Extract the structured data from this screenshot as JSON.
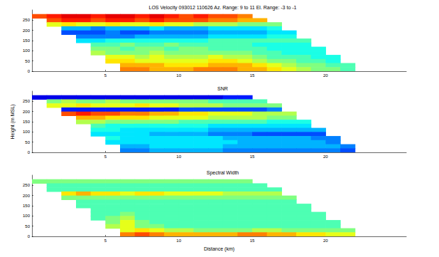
{
  "chart_data": [
    {
      "type": "heatmap",
      "title": "LOS Velocity 093012 110626 Az. Range: 9 to 11 El. Range: -3 to -1",
      "xlim": [
        0,
        25.5
      ],
      "xticks": [
        5,
        10,
        15,
        20
      ],
      "ylim": [
        0,
        300
      ],
      "yticks": [
        0,
        50,
        100,
        150,
        200,
        250
      ],
      "grid": false,
      "color_range": [
        0,
        10
      ],
      "x": [
        0.5,
        1.5,
        2.5,
        3.5,
        4.5,
        5.5,
        6.5,
        7.5,
        8.5,
        9.5,
        10.5,
        11.5,
        12.5,
        13.5,
        14.5,
        15.5,
        16.5,
        17.5,
        18.5,
        19.5,
        20.5,
        21.5
      ],
      "y": [
        270,
        250,
        230,
        210,
        190,
        170,
        150,
        130,
        110,
        90,
        70,
        50,
        30,
        10
      ],
      "cells": [
        [
          8,
          8.5,
          9,
          9,
          8.5,
          9,
          9,
          8.5,
          9,
          8.5,
          8,
          8.5,
          8,
          8,
          7.5,
          null,
          null,
          null,
          null,
          null,
          null,
          null
        ],
        [
          null,
          8,
          8.5,
          8.5,
          8,
          8.5,
          8.5,
          8,
          8.5,
          8,
          8,
          8,
          7.5,
          7.5,
          7,
          7,
          null,
          null,
          null,
          null,
          null,
          null
        ],
        [
          null,
          6,
          6.5,
          6,
          6,
          6.5,
          6,
          6,
          6.5,
          6,
          6,
          5.5,
          5.5,
          5.5,
          5,
          5,
          5,
          null,
          null,
          null,
          null,
          null
        ],
        [
          null,
          null,
          3,
          3,
          2.5,
          3,
          3,
          3,
          3.5,
          3,
          3,
          3,
          3.5,
          3.5,
          3.5,
          3.5,
          4,
          null,
          null,
          null,
          null,
          null
        ],
        [
          null,
          null,
          2,
          2,
          2,
          2.5,
          2,
          2,
          2.5,
          2.5,
          2.5,
          2.5,
          3,
          3,
          3,
          3,
          3.5,
          3.5,
          null,
          null,
          null,
          null
        ],
        [
          null,
          null,
          null,
          2.5,
          2.5,
          2.5,
          2.5,
          3,
          3,
          3,
          3,
          3,
          3.5,
          3.5,
          3.5,
          3.5,
          4,
          4,
          null,
          null,
          null,
          null
        ],
        [
          null,
          null,
          null,
          3.5,
          3.5,
          4,
          4,
          4,
          4,
          4,
          4,
          4,
          4.5,
          4.5,
          4.5,
          4.5,
          4.5,
          4.5,
          4.5,
          null,
          null,
          null
        ],
        [
          null,
          null,
          null,
          null,
          4.5,
          4.5,
          5,
          4.5,
          4.5,
          5,
          4.5,
          4.5,
          4.5,
          4.5,
          4.5,
          4,
          4,
          4,
          4,
          null,
          null,
          null
        ],
        [
          null,
          null,
          null,
          null,
          5,
          5,
          4.5,
          5,
          5,
          4.5,
          5,
          5,
          4.5,
          4.5,
          4.5,
          4.5,
          4,
          4,
          4,
          4,
          null,
          null
        ],
        [
          null,
          null,
          null,
          null,
          5.5,
          5,
          5,
          5,
          5.5,
          5,
          5,
          5,
          5,
          5,
          5,
          4.5,
          4.5,
          4,
          4,
          4,
          null,
          null
        ],
        [
          null,
          null,
          null,
          null,
          null,
          6,
          6,
          5.5,
          6,
          5.5,
          5.5,
          5.5,
          6,
          5.5,
          5.5,
          5,
          4.5,
          4.5,
          4.5,
          4,
          4,
          null
        ],
        [
          null,
          null,
          null,
          null,
          null,
          6.5,
          6.5,
          6,
          6,
          6,
          6,
          6,
          6.5,
          6.5,
          6,
          5.5,
          5,
          5,
          4.5,
          4.5,
          4,
          null
        ],
        [
          null,
          null,
          null,
          null,
          null,
          null,
          7,
          7,
          7,
          6.5,
          6.5,
          6.5,
          7,
          7,
          7,
          6.5,
          6,
          5.5,
          5,
          5,
          4.5,
          4.5
        ],
        [
          null,
          null,
          null,
          null,
          null,
          null,
          7.5,
          7.5,
          7,
          7,
          7,
          7.5,
          7.5,
          7.5,
          7,
          7,
          6.5,
          6,
          5.5,
          5,
          5,
          4.5
        ]
      ]
    },
    {
      "type": "heatmap",
      "title": "SNR",
      "ylabel": "Height (m MSL)",
      "xlim": [
        0,
        25.5
      ],
      "xticks": [
        5,
        10,
        15,
        20
      ],
      "ylim": [
        0,
        300
      ],
      "yticks": [
        0,
        50,
        100,
        150,
        200,
        250
      ],
      "grid": false,
      "color_range": [
        0,
        10
      ],
      "x": [
        0.5,
        1.5,
        2.5,
        3.5,
        4.5,
        5.5,
        6.5,
        7.5,
        8.5,
        9.5,
        10.5,
        11.5,
        12.5,
        13.5,
        14.5,
        15.5,
        16.5,
        17.5,
        18.5,
        19.5,
        20.5,
        21.5
      ],
      "y": [
        270,
        250,
        230,
        210,
        190,
        170,
        150,
        130,
        110,
        90,
        70,
        50,
        30,
        10
      ],
      "cells": [
        [
          1,
          1,
          1,
          1,
          1,
          1,
          1,
          1,
          1,
          1,
          1,
          1,
          1,
          1.5,
          1.5,
          null,
          null,
          null,
          null,
          null,
          null,
          null
        ],
        [
          null,
          5,
          5.5,
          5,
          5,
          5.5,
          5,
          5,
          5,
          5,
          5,
          5,
          4.5,
          4.5,
          4.5,
          4.5,
          null,
          null,
          null,
          null,
          null,
          null
        ],
        [
          null,
          6,
          6,
          6.5,
          6,
          6,
          6,
          6.5,
          6,
          6,
          5.5,
          5.5,
          5.5,
          5,
          5,
          5,
          5,
          null,
          null,
          null,
          null,
          null
        ],
        [
          null,
          null,
          1.5,
          1.5,
          1.5,
          1.5,
          1.5,
          1.5,
          1.5,
          1.5,
          2,
          2,
          2,
          2,
          2,
          2,
          2.5,
          null,
          null,
          null,
          null,
          null
        ],
        [
          null,
          null,
          8,
          8.5,
          8,
          8,
          7.5,
          7.5,
          7,
          7,
          6.5,
          6.5,
          6,
          6,
          6,
          5.5,
          5.5,
          5.5,
          null,
          null,
          null,
          null
        ],
        [
          null,
          null,
          null,
          7,
          7,
          6.5,
          6.5,
          6.5,
          6,
          6,
          6,
          6,
          5.5,
          5.5,
          5.5,
          5.5,
          5,
          5,
          null,
          null,
          null,
          null
        ],
        [
          null,
          null,
          null,
          5.5,
          5.5,
          5,
          5,
          5,
          5,
          5,
          4.5,
          4.5,
          4.5,
          4.5,
          4.5,
          4.5,
          4,
          4,
          4,
          null,
          null,
          null
        ],
        [
          null,
          null,
          null,
          null,
          4.5,
          4,
          4,
          4,
          4,
          4,
          4,
          4,
          3.5,
          3.5,
          3.5,
          3.5,
          3.5,
          3.5,
          3.5,
          null,
          null,
          null
        ],
        [
          null,
          null,
          null,
          null,
          4,
          4,
          3.5,
          3.5,
          3.5,
          3.5,
          3.5,
          3.5,
          3,
          3,
          3,
          3,
          3,
          3,
          3,
          3,
          null,
          null
        ],
        [
          null,
          null,
          null,
          null,
          3.5,
          3.5,
          3.5,
          3.5,
          3,
          3,
          3,
          3,
          2.5,
          2.5,
          2.5,
          2,
          2,
          2,
          2,
          2,
          null,
          null
        ],
        [
          null,
          null,
          null,
          null,
          null,
          4,
          3.5,
          3.5,
          3.5,
          3.5,
          3.5,
          3.5,
          3.5,
          3,
          3,
          3,
          3,
          3,
          3,
          2.5,
          2.5,
          null
        ],
        [
          null,
          null,
          null,
          null,
          null,
          3.5,
          3.5,
          3.5,
          3.5,
          3.5,
          3.5,
          3.5,
          3.5,
          3.5,
          3,
          3,
          3,
          3,
          3,
          3,
          2.5,
          null
        ],
        [
          null,
          null,
          null,
          null,
          null,
          null,
          3,
          3,
          3.5,
          3.5,
          3.5,
          3.5,
          3.5,
          3,
          3,
          3,
          3,
          3,
          3,
          3,
          3,
          2.5
        ],
        [
          null,
          null,
          null,
          null,
          null,
          null,
          2.5,
          2.5,
          3,
          3,
          3,
          3,
          3,
          2.5,
          2.5,
          2.5,
          2.5,
          2.5,
          2.5,
          2.5,
          2.5,
          2
        ]
      ]
    },
    {
      "type": "heatmap",
      "title": "Spectral Width",
      "xlabel": "Distance (km)",
      "xlim": [
        0,
        25.5
      ],
      "xticks": [
        5,
        10,
        15,
        20
      ],
      "ylim": [
        0,
        300
      ],
      "yticks": [
        0,
        50,
        100,
        150,
        200,
        250
      ],
      "grid": false,
      "color_range": [
        0,
        10
      ],
      "x": [
        0.5,
        1.5,
        2.5,
        3.5,
        4.5,
        5.5,
        6.5,
        7.5,
        8.5,
        9.5,
        10.5,
        11.5,
        12.5,
        13.5,
        14.5,
        15.5,
        16.5,
        17.5,
        18.5,
        19.5,
        20.5,
        21.5
      ],
      "y": [
        270,
        250,
        230,
        210,
        190,
        170,
        150,
        130,
        110,
        90,
        70,
        50,
        30,
        10
      ],
      "cells": [
        [
          5,
          5,
          5,
          5,
          5,
          5,
          5,
          5,
          5,
          5,
          5,
          5,
          5,
          5,
          5,
          null,
          null,
          null,
          null,
          null,
          null,
          null
        ],
        [
          null,
          4.5,
          4.5,
          4.5,
          4.5,
          4.5,
          4.5,
          4.5,
          4.5,
          4.5,
          4.5,
          4.5,
          4.5,
          4.5,
          4.5,
          4.5,
          null,
          null,
          null,
          null,
          null,
          null
        ],
        [
          null,
          4.5,
          4.5,
          4.5,
          4.5,
          4.5,
          4.5,
          4.5,
          4.5,
          4.5,
          4.5,
          4.5,
          4.5,
          4.5,
          4.5,
          4.5,
          4.5,
          null,
          null,
          null,
          null,
          null
        ],
        [
          null,
          null,
          6.5,
          7,
          6.5,
          6.5,
          6,
          6.5,
          6.5,
          6,
          6,
          6,
          6,
          5.5,
          5.5,
          5.5,
          5.5,
          null,
          null,
          null,
          null,
          null
        ],
        [
          null,
          null,
          5,
          5,
          5,
          5,
          5,
          5,
          5,
          5,
          5,
          5,
          5,
          5,
          5,
          5,
          5,
          5,
          null,
          null,
          null,
          null
        ],
        [
          null,
          null,
          null,
          4.5,
          4.5,
          4.5,
          4.5,
          4.5,
          4.5,
          4.5,
          4.5,
          4.5,
          4.5,
          4.5,
          4.5,
          4.5,
          4.5,
          4.5,
          null,
          null,
          null,
          null
        ],
        [
          null,
          null,
          null,
          4.5,
          4.5,
          4.5,
          4.5,
          4.5,
          4.5,
          4.5,
          4.5,
          4.5,
          4.5,
          4.5,
          4.5,
          4.5,
          4.5,
          4.5,
          4.5,
          null,
          null,
          null
        ],
        [
          null,
          null,
          null,
          null,
          4.5,
          4.5,
          4.5,
          4.5,
          4.5,
          4.5,
          4.5,
          4.5,
          4.5,
          4.5,
          4.5,
          4.5,
          4.5,
          4.5,
          4.5,
          null,
          null,
          null
        ],
        [
          null,
          null,
          null,
          null,
          4.5,
          4.5,
          5,
          4.5,
          4.5,
          4.5,
          4.5,
          4.5,
          4.5,
          4.5,
          4.5,
          4.5,
          4.5,
          4.5,
          4.5,
          4.5,
          null,
          null
        ],
        [
          null,
          null,
          null,
          null,
          4.5,
          5,
          5.5,
          4.5,
          4.5,
          4.5,
          4.5,
          4.5,
          4.5,
          4.5,
          4.5,
          4.5,
          4.5,
          4.5,
          4.5,
          4.5,
          null,
          null
        ],
        [
          null,
          null,
          null,
          null,
          null,
          5,
          6,
          5,
          4.5,
          4.5,
          4.5,
          4.5,
          4.5,
          4.5,
          4.5,
          4.5,
          4.5,
          4.5,
          4.5,
          4.5,
          4.5,
          null
        ],
        [
          null,
          null,
          null,
          null,
          null,
          5.5,
          6,
          5,
          5,
          4.5,
          4.5,
          4.5,
          4.5,
          4.5,
          4.5,
          4.5,
          4.5,
          4.5,
          4.5,
          4.5,
          4.5,
          null
        ],
        [
          null,
          null,
          null,
          null,
          null,
          null,
          6,
          6.5,
          6,
          5.5,
          5.5,
          5,
          5,
          5,
          5,
          5.5,
          5.5,
          5,
          5,
          5,
          5,
          5
        ],
        [
          null,
          null,
          null,
          null,
          null,
          null,
          7.5,
          8,
          7.5,
          7,
          7,
          7,
          7,
          7,
          7.5,
          7.5,
          7,
          7,
          6.5,
          6.5,
          6,
          6
        ]
      ]
    }
  ]
}
